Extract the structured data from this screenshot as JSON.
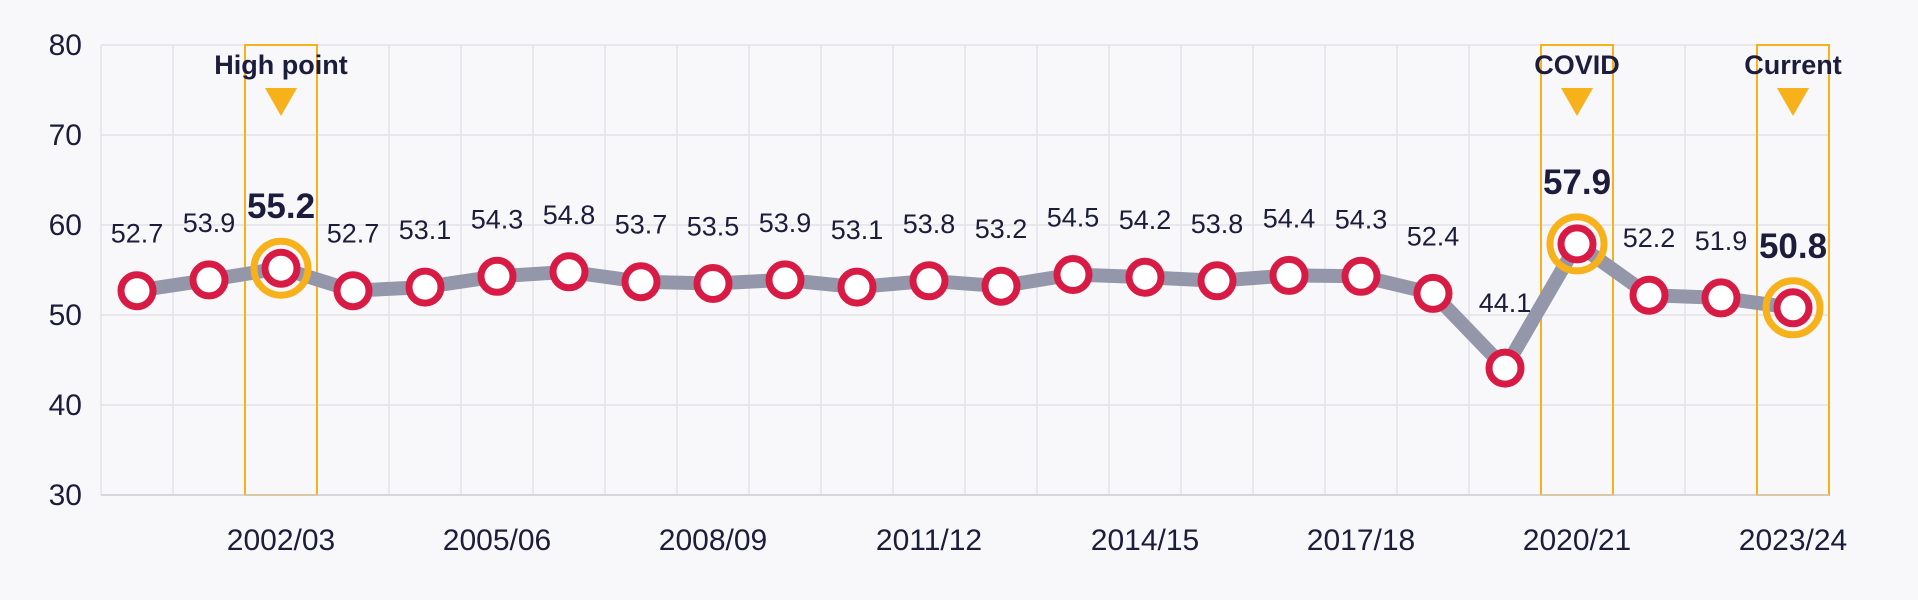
{
  "colors": {
    "line": "#9497aa",
    "marker": "#d81b45",
    "highlight": "#f7b11b",
    "text": "#1c1c3c"
  },
  "chart_data": {
    "type": "line",
    "title": "",
    "xlabel": "",
    "ylabel": "",
    "ylim": [
      30,
      80
    ],
    "yticks": [
      30,
      40,
      50,
      60,
      70,
      80
    ],
    "grid": true,
    "x": [
      "2000/01",
      "2001/02",
      "2002/03",
      "2003/04",
      "2004/05",
      "2005/06",
      "2006/07",
      "2007/08",
      "2008/09",
      "2009/10",
      "2010/11",
      "2011/12",
      "2012/13",
      "2013/14",
      "2014/15",
      "2015/16",
      "2016/17",
      "2017/18",
      "2018/19",
      "2019/20",
      "2020/21",
      "2021/22",
      "2022/23",
      "2023/24"
    ],
    "xtick_labels": [
      "2002/03",
      "2005/06",
      "2008/09",
      "2011/12",
      "2014/15",
      "2017/18",
      "2020/21",
      "2023/24"
    ],
    "series": [
      {
        "values": [
          52.7,
          53.9,
          55.2,
          52.7,
          53.1,
          54.3,
          54.8,
          53.7,
          53.5,
          53.9,
          53.1,
          53.8,
          53.2,
          54.5,
          54.2,
          53.8,
          54.4,
          54.3,
          52.4,
          44.1,
          57.9,
          52.2,
          51.9,
          50.8
        ]
      }
    ],
    "data_labels": [
      "52.7",
      "53.9",
      "55.2",
      "52.7",
      "53.1",
      "54.3",
      "54.8",
      "53.7",
      "53.5",
      "53.9",
      "53.1",
      "53.8",
      "53.2",
      "54.5",
      "54.2",
      "53.8",
      "54.4",
      "54.3",
      "52.4",
      "44.1",
      "57.9",
      "52.2",
      "51.9",
      "50.8"
    ],
    "annotations": [
      {
        "x": "2002/03",
        "label": "High point"
      },
      {
        "x": "2020/21",
        "label": "COVID"
      },
      {
        "x": "2023/24",
        "label": "Current"
      }
    ]
  }
}
